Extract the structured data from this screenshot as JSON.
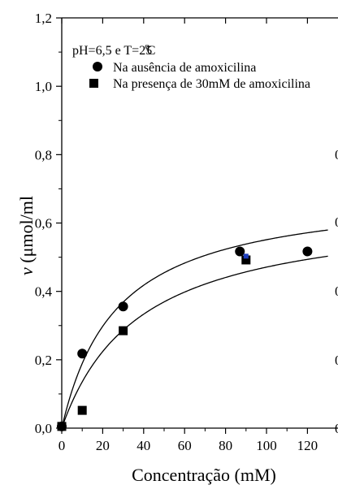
{
  "chart_data": {
    "type": "scatter",
    "annotation": "pH=6,5 e T=25",
    "annotation_degree": "o",
    "annotation_unit": "C",
    "xlabel": "Concentração (mM)",
    "ylabel_prefix": "v",
    "ylabel_unit": " (μmol/ml",
    "xlim": [
      0,
      130
    ],
    "ylim": [
      0,
      1.2
    ],
    "x_ticks": [
      0,
      20,
      40,
      60,
      80,
      100,
      120
    ],
    "x_tick_labels": [
      "0",
      "20",
      "40",
      "60",
      "80",
      "100",
      "120"
    ],
    "y_ticks": [
      0,
      0.2,
      0.4,
      0.6,
      0.8,
      1.0,
      1.2
    ],
    "y_tick_labels": [
      "0,0",
      "0,2",
      "0,4",
      "0,6",
      "0,8",
      "1,0",
      "1,2"
    ],
    "right_axis_partial_labels": [
      "0",
      "0",
      "0",
      "0",
      "0"
    ],
    "series": [
      {
        "name": "Na ausência de amoxicilina",
        "marker": "circle",
        "color": "#000000",
        "x": [
          0,
          10,
          30,
          87,
          120
        ],
        "y": [
          0.005,
          0.218,
          0.356,
          0.517,
          0.517
        ],
        "fit_vmax": 0.7,
        "fit_km": 27
      },
      {
        "name": "Na presença de 30mM de amoxicilina",
        "marker": "square",
        "color": "#000000",
        "x": [
          0,
          10,
          30,
          90
        ],
        "y": [
          0.005,
          0.052,
          0.285,
          0.492
        ],
        "fit_vmax": 0.65,
        "fit_km": 38
      }
    ],
    "highlight_point": {
      "x": 90,
      "y": 0.503,
      "color": "#1f3fbf"
    }
  }
}
